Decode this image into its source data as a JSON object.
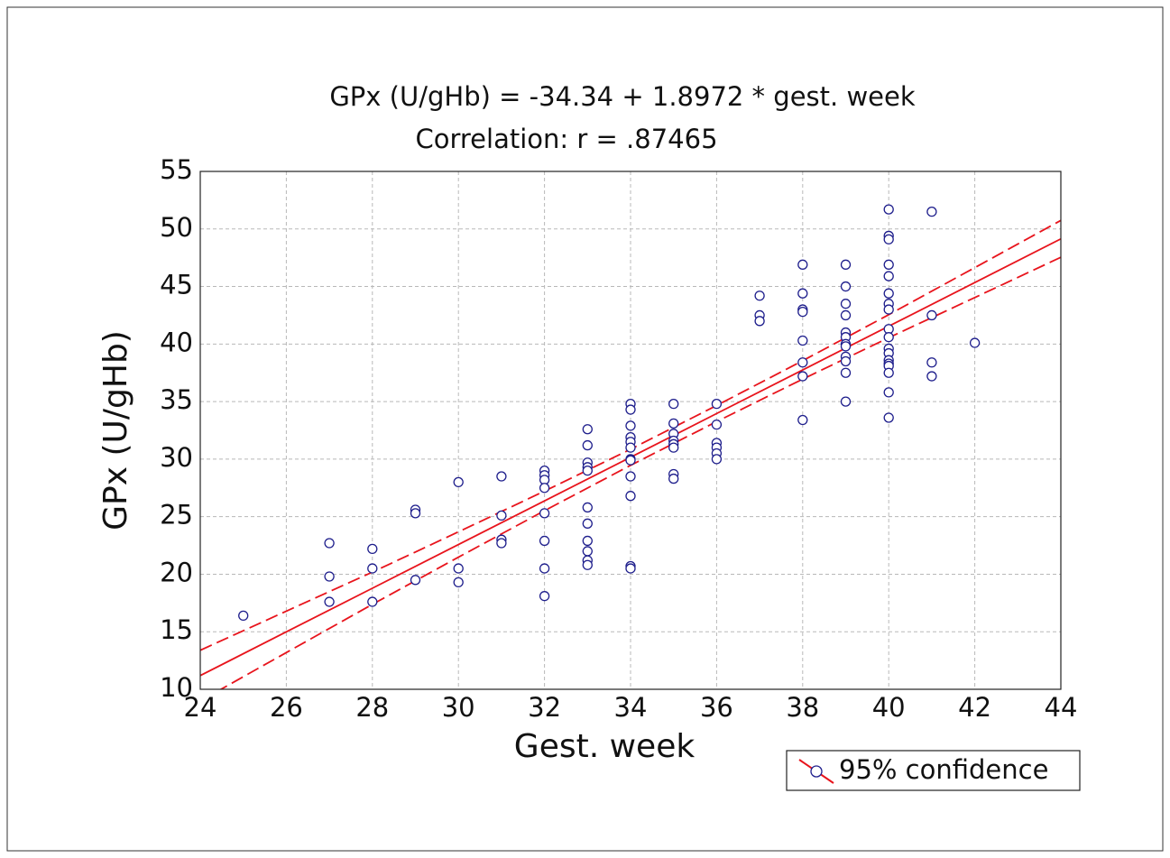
{
  "chart_data": {
    "type": "scatter",
    "title": "GPx (U/gHb) = -34.34 + 1.8972 * gest. week",
    "subtitle": "Correlation: r = .87465",
    "xlabel": "Gest. week",
    "ylabel": "GPx (U/gHb)",
    "xlim": [
      24,
      44
    ],
    "ylim": [
      10,
      55
    ],
    "xticks": [
      24,
      26,
      28,
      30,
      32,
      34,
      36,
      38,
      40,
      42,
      44
    ],
    "yticks": [
      10,
      15,
      20,
      25,
      30,
      35,
      40,
      45,
      50,
      55
    ],
    "grid": true,
    "color": "#1e1e8c",
    "x": [
      25,
      27,
      27,
      27,
      28,
      28,
      28,
      29,
      29,
      29,
      30,
      30,
      30,
      31,
      31,
      31,
      31,
      32,
      32,
      32,
      32,
      32,
      32,
      32,
      32,
      33,
      33,
      33,
      33,
      33,
      33,
      33,
      33,
      33,
      33,
      33,
      34,
      34,
      34,
      34,
      34,
      34,
      34,
      34,
      34,
      34,
      34,
      34,
      35,
      35,
      35,
      35,
      35,
      35,
      35,
      35,
      36,
      36,
      36,
      36,
      36,
      36,
      37,
      37,
      37,
      38,
      38,
      38,
      38,
      38,
      38,
      38,
      38,
      39,
      39,
      39,
      39,
      39,
      39,
      39,
      39,
      39,
      39,
      39,
      39,
      40,
      40,
      40,
      40,
      40,
      40,
      40,
      40,
      40,
      40,
      40,
      40,
      40,
      40,
      40,
      40,
      40,
      40,
      41,
      41,
      41,
      41,
      42
    ],
    "values": [
      16.4,
      22.7,
      19.8,
      17.6,
      22.2,
      20.5,
      17.6,
      25.6,
      25.3,
      19.5,
      28.0,
      20.5,
      19.3,
      28.5,
      25.1,
      23.0,
      22.7,
      29.0,
      28.6,
      28.2,
      27.5,
      25.3,
      22.9,
      20.5,
      18.1,
      32.6,
      31.2,
      29.7,
      29.3,
      29.0,
      25.8,
      24.4,
      22.9,
      22.0,
      21.2,
      20.8,
      34.8,
      34.3,
      32.9,
      31.9,
      31.5,
      31.0,
      30.0,
      29.9,
      28.5,
      26.8,
      20.7,
      20.5,
      34.8,
      33.1,
      32.2,
      31.6,
      31.3,
      31.0,
      28.7,
      28.3,
      34.8,
      33.0,
      31.4,
      31.0,
      30.5,
      30.0,
      44.2,
      42.5,
      42.0,
      46.9,
      44.4,
      43.0,
      42.8,
      40.3,
      38.4,
      37.2,
      33.4,
      46.9,
      45.0,
      43.5,
      42.5,
      41.0,
      40.6,
      40.0,
      39.8,
      38.9,
      38.5,
      37.5,
      35.0,
      51.7,
      49.4,
      49.1,
      46.9,
      45.9,
      44.4,
      43.5,
      43.0,
      41.3,
      40.6,
      39.6,
      39.2,
      38.6,
      38.3,
      38.1,
      37.5,
      35.8,
      33.6,
      51.5,
      42.5,
      38.4,
      37.2,
      40.1
    ],
    "fit": {
      "color": "#e8141c",
      "x": [
        24,
        26,
        28,
        30,
        32,
        34,
        36,
        38,
        40,
        42,
        44
      ],
      "values": [
        11.19,
        14.99,
        18.78,
        22.58,
        26.37,
        30.16,
        33.96,
        37.75,
        41.55,
        45.34,
        49.14
      ],
      "upper": [
        13.39,
        16.79,
        20.18,
        23.68,
        27.22,
        30.86,
        34.66,
        38.55,
        42.55,
        46.64,
        50.74
      ],
      "lower": [
        8.99,
        13.19,
        17.38,
        21.48,
        25.52,
        29.46,
        33.26,
        36.95,
        40.55,
        44.04,
        47.54
      ]
    },
    "legend": {
      "label": "95% confidence",
      "position": "lower right"
    }
  }
}
